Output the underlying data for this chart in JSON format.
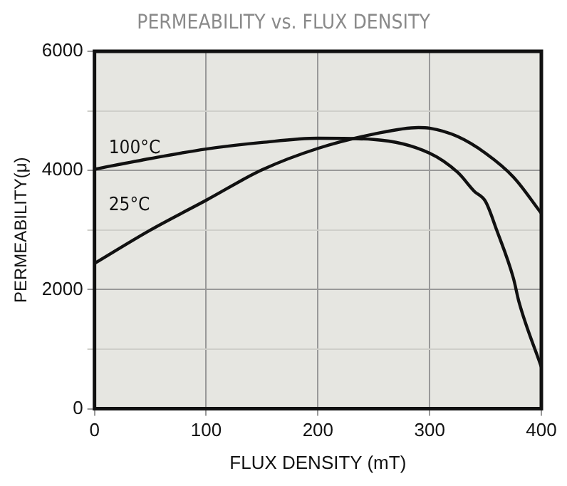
{
  "chart_data": {
    "type": "line",
    "title": "PERMEABILITY vs. FLUX DENSITY",
    "xlabel": "FLUX DENSITY (mT)",
    "ylabel": "PERMEABILITY(μ)",
    "xlim": [
      0,
      400
    ],
    "xticks": [
      0,
      100,
      200,
      300,
      400
    ],
    "ylim": [
      0,
      6000
    ],
    "yticks": [
      0,
      {
        "value": 1000,
        "label": null
      },
      2000,
      {
        "value": 3000,
        "label": null
      },
      4000,
      {
        "value": 5000,
        "label": null
      },
      6000
    ],
    "grid": true,
    "legend": false,
    "marker": "none",
    "line_style": "solid",
    "series": [
      {
        "name": "100°C",
        "color": "#111111",
        "x": [
          0,
          50,
          100,
          150,
          200,
          250,
          300,
          325,
          340,
          350,
          360,
          375,
          380,
          400
        ],
        "values": [
          4020,
          4200,
          4360,
          4470,
          4540,
          4520,
          4290,
          3970,
          3650,
          3480,
          3000,
          2190,
          1790,
          700
        ]
      },
      {
        "name": "25°C",
        "color": "#111111",
        "x": [
          0,
          50,
          100,
          150,
          200,
          250,
          290,
          300,
          325,
          350,
          375,
          400
        ],
        "values": [
          2440,
          3000,
          3500,
          4010,
          4370,
          4610,
          4720,
          4710,
          4570,
          4290,
          3890,
          3280
        ]
      }
    ]
  }
}
